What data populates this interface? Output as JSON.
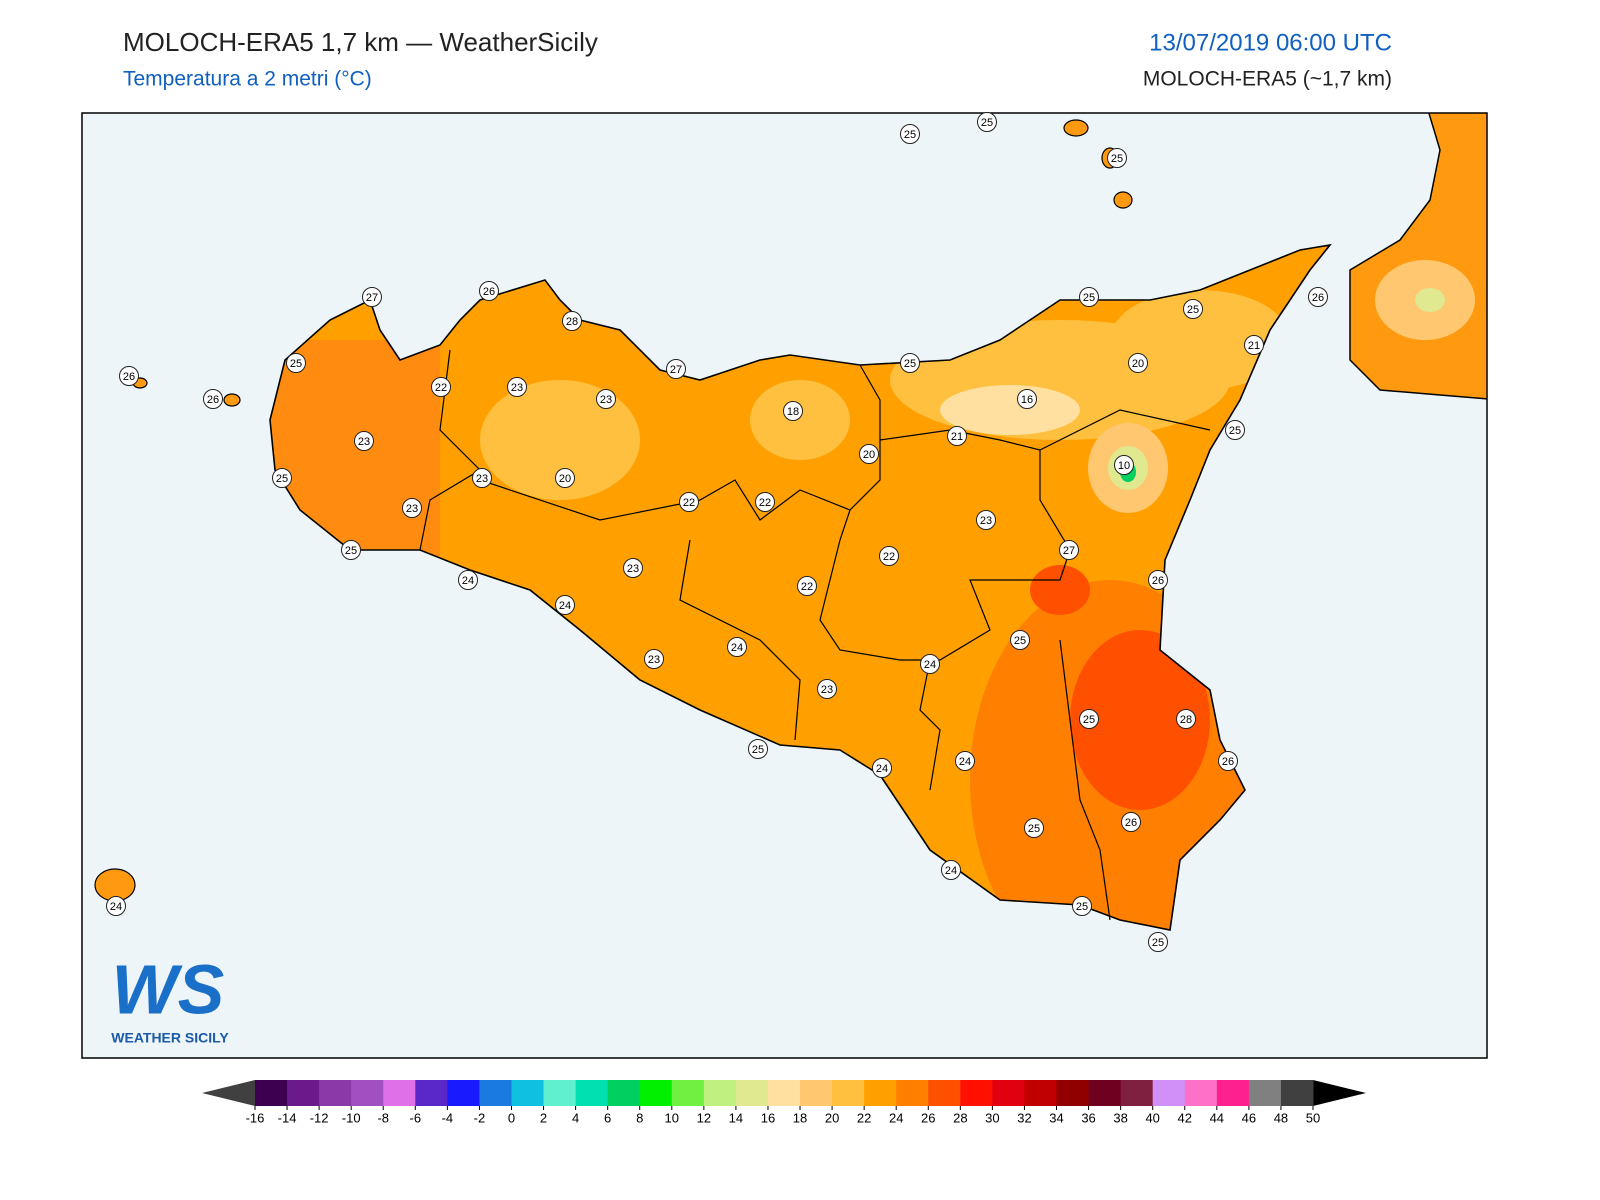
{
  "header": {
    "title": "MOLOCH-ERA5 1,7 km — WeatherSicily",
    "subtitle": "Temperatura a 2 metri (°C)",
    "valid_time": "13/07/2019 06:00 UTC",
    "model": "MOLOCH-ERA5 (~1,7 km)"
  },
  "map": {
    "station_values": [
      25,
      25,
      25,
      27,
      26,
      28,
      26,
      26,
      25,
      22,
      23,
      23,
      27,
      18,
      25,
      25,
      25,
      26,
      20,
      21,
      16,
      21,
      20,
      10,
      25,
      23,
      25,
      23,
      20,
      22,
      22,
      23,
      25,
      23,
      27,
      22,
      24,
      23,
      22,
      26,
      24,
      25,
      24,
      24,
      23,
      23,
      25,
      28,
      25,
      24,
      24,
      26,
      25,
      26,
      24,
      25,
      25,
      24
    ]
  },
  "colorbar": {
    "ticks": [
      -16,
      -14,
      -12,
      -10,
      -8,
      -6,
      -4,
      -2,
      0,
      2,
      4,
      6,
      8,
      10,
      12,
      14,
      16,
      18,
      20,
      22,
      24,
      26,
      28,
      30,
      32,
      34,
      36,
      38,
      40,
      42,
      44,
      46,
      48,
      50
    ],
    "colors": [
      "#3d0050",
      "#6a1a8a",
      "#8a3aa8",
      "#a050c0",
      "#e070e8",
      "#5a28c8",
      "#1a1aff",
      "#1a7ae0",
      "#10c0e0",
      "#60f0d0",
      "#00e0b0",
      "#00d060",
      "#00f000",
      "#70f040",
      "#c0f080",
      "#e0e890",
      "#ffe0a0",
      "#ffc870",
      "#ffc040",
      "#ffa000",
      "#ff8000",
      "#ff5000",
      "#ff1000",
      "#e00010",
      "#c00000",
      "#900000",
      "#700020",
      "#802040",
      "#d090f8",
      "#ff70c8",
      "#ff2090",
      "#808080",
      "#404040"
    ],
    "under_color": "#404040",
    "over_color": "#000000"
  },
  "logo": {
    "mark": "WS",
    "text": "WEATHER SICILY"
  }
}
